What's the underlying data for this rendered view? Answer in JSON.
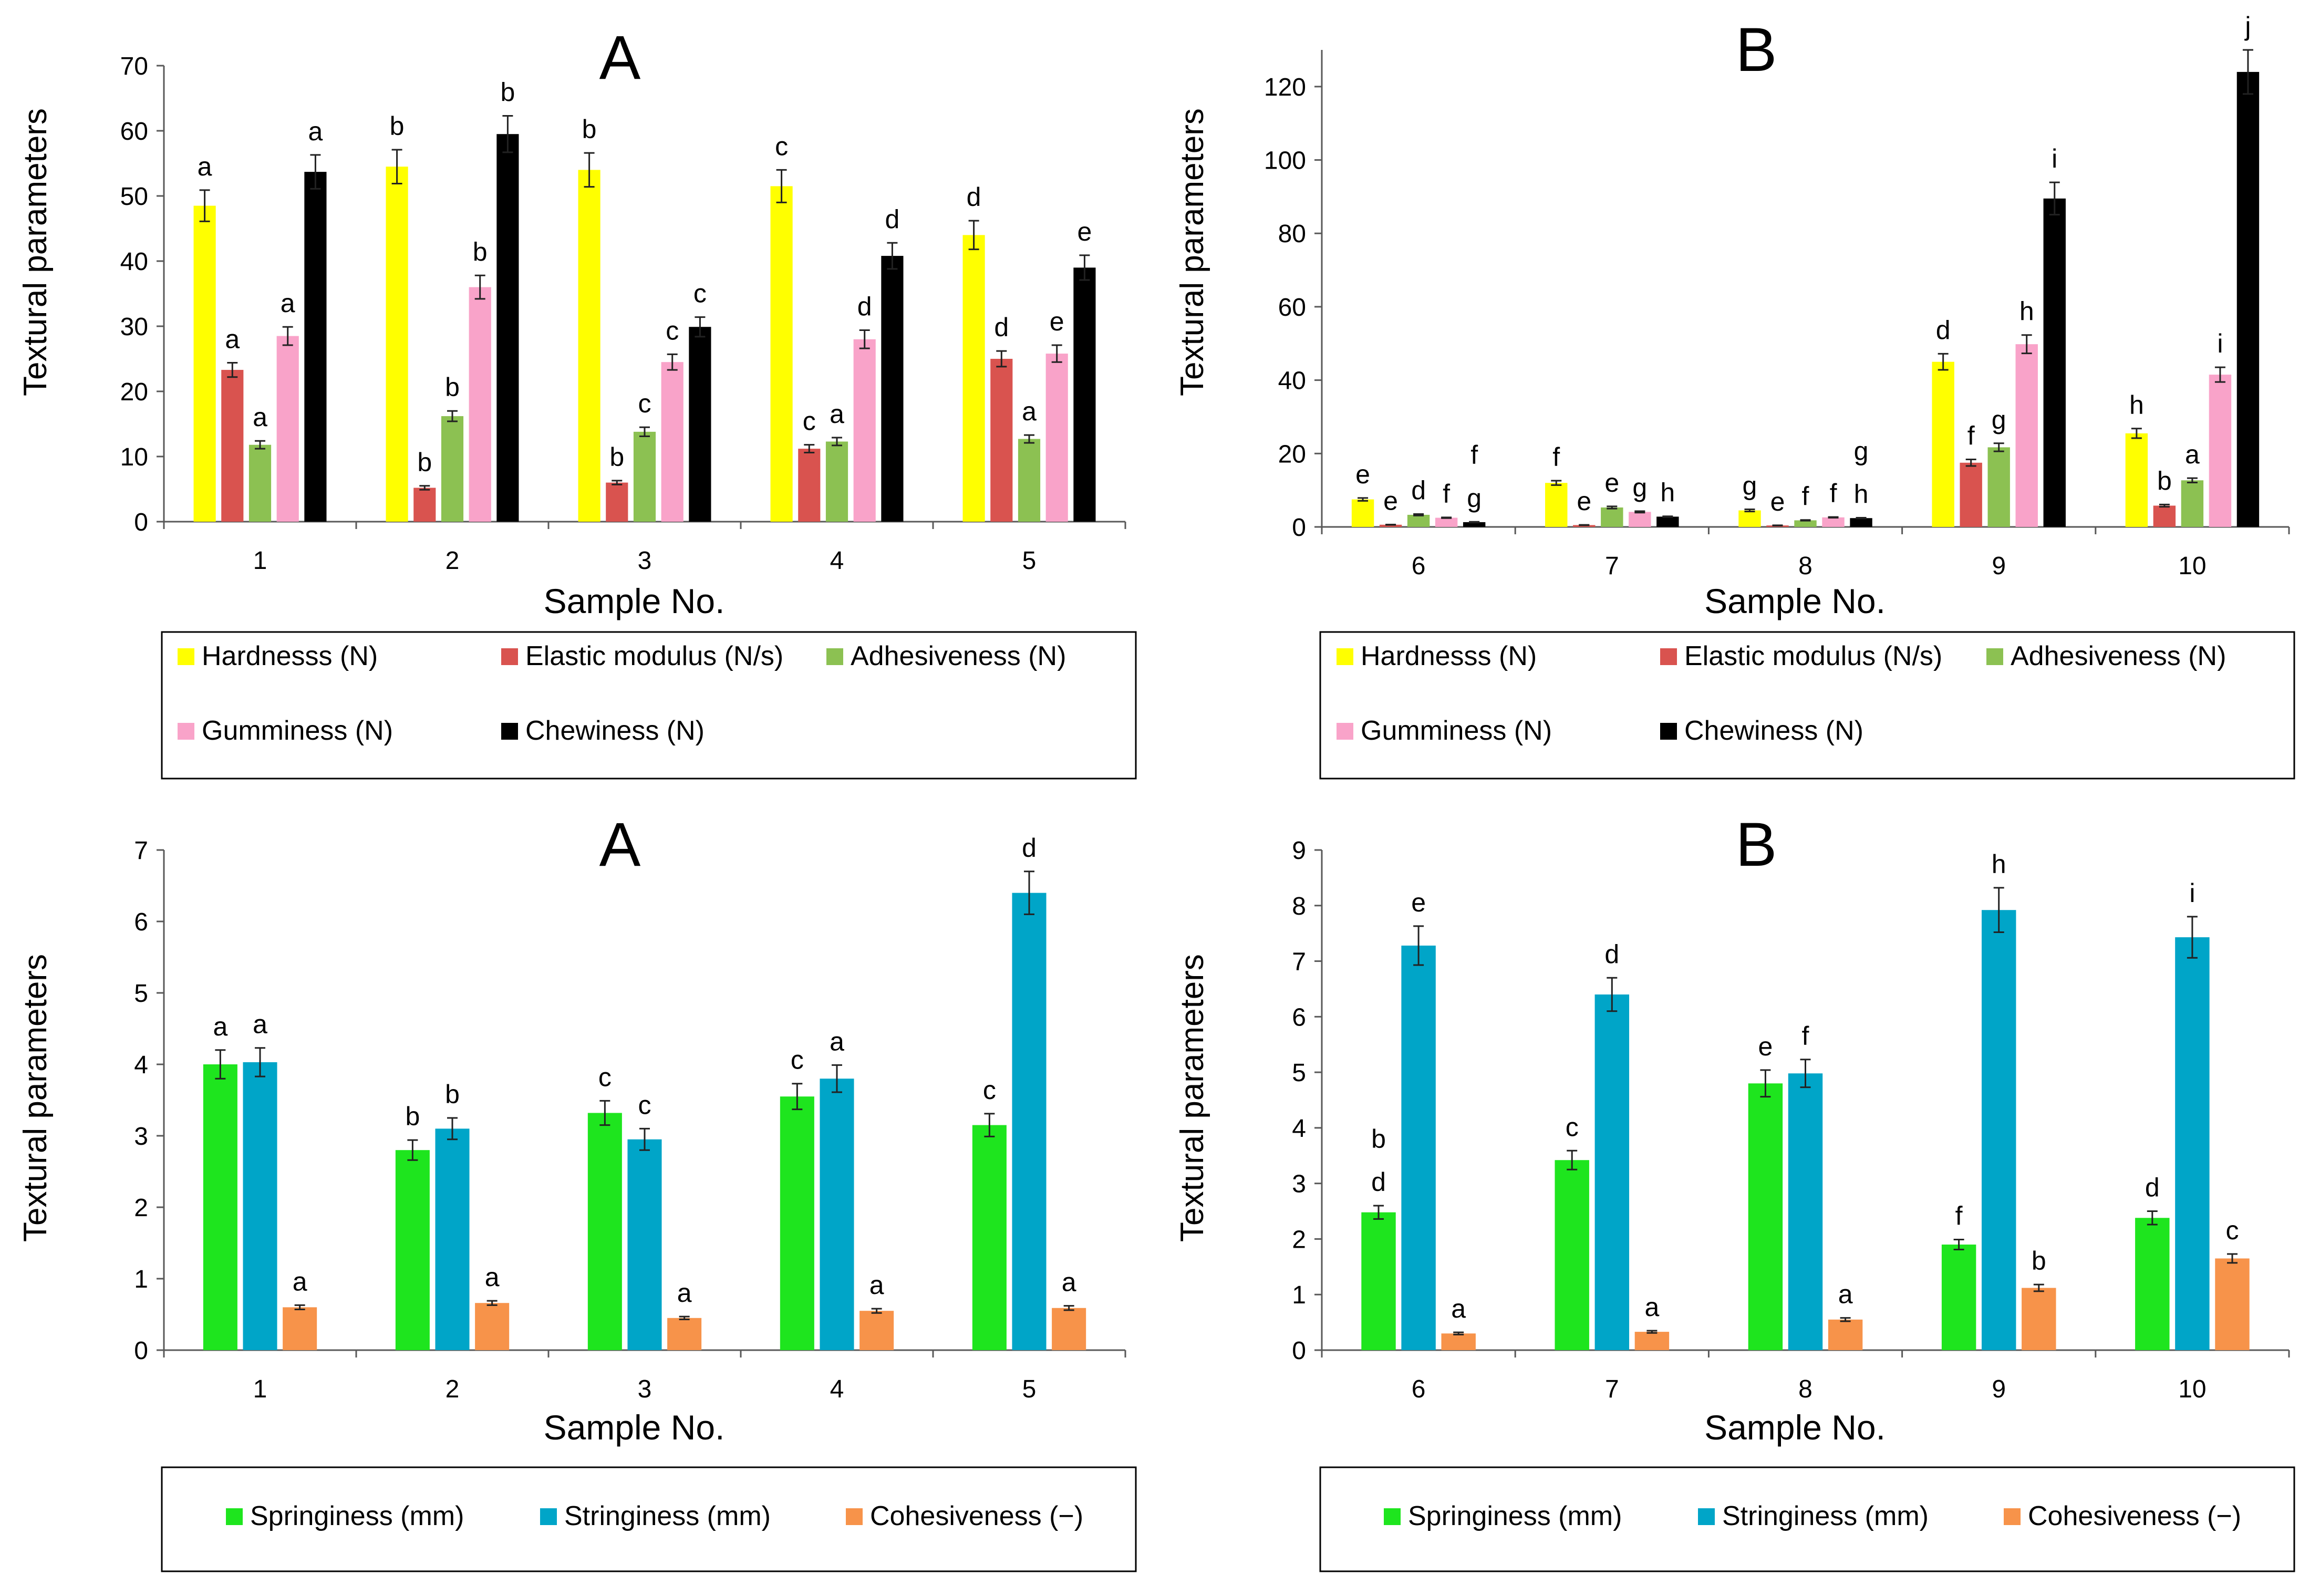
{
  "colors": {
    "hardness": "#ffff00",
    "elastic": "#d9534f",
    "adhesive": "#8cc152",
    "gumminess": "#f9a3c9",
    "chewiness": "#000000",
    "springiness": "#1ee51e",
    "stringiness": "#00a5c8",
    "cohesiveness": "#f7934a"
  },
  "chart_data": [
    {
      "id": "top-left",
      "type": "bar",
      "title": "A",
      "xlabel": "Sample No.",
      "ylabel": "Textural parameters",
      "ylim": [
        0,
        70
      ],
      "yticks": [
        "0",
        "10",
        "20",
        "30",
        "40",
        "50",
        "60",
        "70"
      ],
      "categories": [
        "1",
        "2",
        "3",
        "4",
        "5"
      ],
      "series": [
        {
          "name": "Hardnesss (N)",
          "color": "hardness",
          "values": [
            48.5,
            54.5,
            54.0,
            51.5,
            44.0
          ],
          "errors": [
            2.4,
            2.6,
            2.6,
            2.5,
            2.2
          ],
          "labels": [
            "a",
            "b",
            "b",
            "c",
            "d"
          ]
        },
        {
          "name": "Elastic modulus (N/s)",
          "color": "elastic",
          "values": [
            23.3,
            5.2,
            6.0,
            11.2,
            25.0
          ],
          "errors": [
            1.1,
            0.3,
            0.3,
            0.6,
            1.2
          ],
          "labels": [
            "a",
            "b",
            "b",
            "c",
            "d"
          ]
        },
        {
          "name": "Adhesiveness (N)",
          "color": "adhesive",
          "values": [
            11.8,
            16.2,
            13.8,
            12.3,
            12.7
          ],
          "errors": [
            0.6,
            0.8,
            0.7,
            0.6,
            0.6
          ],
          "labels": [
            "a",
            "b",
            "c",
            "a",
            "a"
          ]
        },
        {
          "name": "Gumminess (N)",
          "color": "gumminess",
          "values": [
            28.5,
            36.0,
            24.5,
            28.0,
            25.8
          ],
          "errors": [
            1.4,
            1.8,
            1.2,
            1.4,
            1.3
          ],
          "labels": [
            "a",
            "b",
            "c",
            "d",
            "e"
          ]
        },
        {
          "name": "Chewiness (N)",
          "color": "chewiness",
          "values": [
            53.7,
            59.5,
            29.9,
            40.8,
            39.0
          ],
          "errors": [
            2.6,
            2.8,
            1.5,
            2.0,
            1.9
          ],
          "labels": [
            "a",
            "b",
            "c",
            "d",
            "e"
          ]
        }
      ],
      "legend": [
        "Hardnesss (N)",
        "Elastic modulus (N/s)",
        "Adhesiveness (N)",
        "Gumminess (N)",
        "Chewiness (N)"
      ]
    },
    {
      "id": "top-right",
      "type": "bar",
      "title": "B",
      "xlabel": "Sample No.",
      "ylabel": "Textural parameters",
      "ylim": [
        0,
        130
      ],
      "yticks": [
        "0",
        "20",
        "40",
        "60",
        "80",
        "100",
        "120"
      ],
      "categories": [
        "6",
        "7",
        "8",
        "9",
        "10"
      ],
      "series": [
        {
          "name": "Hardnesss (N)",
          "color": "hardness",
          "values": [
            7.5,
            12.0,
            4.5,
            45.0,
            25.5
          ],
          "errors": [
            0.4,
            0.6,
            0.3,
            2.2,
            1.3
          ],
          "labels": [
            "e",
            "f",
            "g",
            "d",
            "h"
          ]
        },
        {
          "name": "Elastic modulus (N/s)",
          "color": "elastic",
          "values": [
            0.6,
            0.5,
            0.4,
            17.5,
            5.8
          ],
          "errors": [
            0.05,
            0.05,
            0.05,
            0.9,
            0.3
          ],
          "labels": [
            "e",
            "e",
            "e",
            "f",
            "b"
          ]
        },
        {
          "name": "Adhesiveness (N)",
          "color": "adhesive",
          "values": [
            3.3,
            5.3,
            1.8,
            21.7,
            12.7
          ],
          "errors": [
            0.2,
            0.3,
            0.1,
            1.1,
            0.6
          ],
          "labels": [
            "d",
            "e",
            "f",
            "g",
            "a"
          ]
        },
        {
          "name": "Gumminess (N)",
          "color": "gumminess",
          "values": [
            2.5,
            4.1,
            2.6,
            49.8,
            41.5
          ],
          "errors": [
            0.1,
            0.2,
            0.1,
            2.5,
            2.0
          ],
          "labels": [
            "f",
            "g",
            "f",
            "h",
            "i"
          ]
        },
        {
          "name": "Chewiness (N)",
          "color": "chewiness",
          "values": [
            1.3,
            2.8,
            2.4,
            89.5,
            124.0
          ],
          "errors": [
            0.1,
            0.1,
            0.1,
            4.4,
            6.0
          ],
          "labels": [
            "f|g",
            "h",
            "g|h",
            "i",
            "j"
          ]
        }
      ],
      "legend": [
        "Hardnesss (N)",
        "Elastic modulus (N/s)",
        "Adhesiveness (N)",
        "Gumminess (N)",
        "Chewiness (N)"
      ]
    },
    {
      "id": "bottom-left",
      "type": "bar",
      "title": "A",
      "xlabel": "Sample No.",
      "ylabel": "Textural parameters",
      "ylim": [
        0,
        7
      ],
      "yticks": [
        "0",
        "1",
        "2",
        "3",
        "4",
        "5",
        "6",
        "7"
      ],
      "categories": [
        "1",
        "2",
        "3",
        "4",
        "5"
      ],
      "series": [
        {
          "name": "Springiness (mm)",
          "color": "springiness",
          "values": [
            4.0,
            2.8,
            3.32,
            3.55,
            3.15
          ],
          "errors": [
            0.2,
            0.14,
            0.17,
            0.18,
            0.16
          ],
          "labels": [
            "a",
            "b",
            "c",
            "c",
            "c"
          ]
        },
        {
          "name": "Stringiness (mm)",
          "color": "stringiness",
          "values": [
            4.03,
            3.1,
            2.95,
            3.8,
            6.4
          ],
          "errors": [
            0.2,
            0.15,
            0.15,
            0.19,
            0.3
          ],
          "labels": [
            "a",
            "b",
            "c",
            "a",
            "d"
          ]
        },
        {
          "name": "Cohesiveness (−)",
          "color": "cohesiveness",
          "values": [
            0.6,
            0.66,
            0.45,
            0.55,
            0.59
          ],
          "errors": [
            0.03,
            0.03,
            0.02,
            0.03,
            0.03
          ],
          "labels": [
            "a",
            "a",
            "a",
            "a",
            "a"
          ]
        }
      ],
      "legend": [
        "Springiness (mm)",
        "Stringiness (mm)",
        "Cohesiveness  (−)"
      ]
    },
    {
      "id": "bottom-right",
      "type": "bar",
      "title": "B",
      "xlabel": "Sample No.",
      "ylabel": "Textural parameters",
      "ylim": [
        0,
        9
      ],
      "yticks": [
        "0",
        "1",
        "2",
        "3",
        "4",
        "5",
        "6",
        "7",
        "8",
        "9"
      ],
      "categories": [
        "6",
        "7",
        "8",
        "9",
        "10"
      ],
      "series": [
        {
          "name": "Springiness (mm)",
          "color": "springiness",
          "values": [
            2.48,
            3.42,
            4.8,
            1.9,
            2.38
          ],
          "errors": [
            0.12,
            0.17,
            0.24,
            0.09,
            0.12
          ],
          "labels": [
            "b|d",
            "c",
            "e",
            "f",
            "d"
          ]
        },
        {
          "name": "Stringiness (mm)",
          "color": "stringiness",
          "values": [
            7.28,
            6.4,
            4.98,
            7.92,
            7.43
          ],
          "errors": [
            0.35,
            0.3,
            0.25,
            0.4,
            0.37
          ],
          "labels": [
            "e",
            "d",
            "f",
            "h",
            "i"
          ]
        },
        {
          "name": "Cohesiveness (−)",
          "color": "cohesiveness",
          "values": [
            0.3,
            0.33,
            0.55,
            1.12,
            1.65
          ],
          "errors": [
            0.02,
            0.02,
            0.03,
            0.06,
            0.08
          ],
          "labels": [
            "a",
            "a",
            "a",
            "b",
            "c"
          ]
        }
      ],
      "legend": [
        "Springiness (mm)",
        "Stringiness (mm)",
        "Cohesiveness  (−)"
      ]
    }
  ]
}
